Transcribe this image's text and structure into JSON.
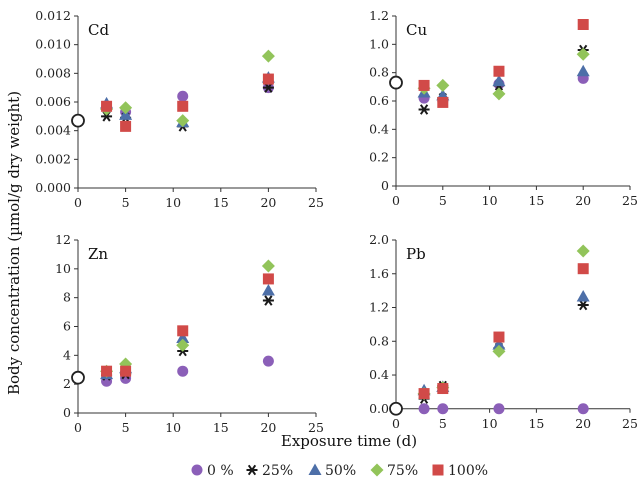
{
  "figure": {
    "ylabel": "Body concentration (µmol/g dry weight)",
    "xlabel": "Exposure time (d)"
  },
  "legend": {
    "items": [
      {
        "label": "0 %",
        "marker": "circle",
        "color": "#8b5fb8"
      },
      {
        "label": "25%",
        "marker": "star",
        "color": "#1a1a1a"
      },
      {
        "label": "50%",
        "marker": "triangle",
        "color": "#4d6fa8"
      },
      {
        "label": "75%",
        "marker": "diamond",
        "color": "#92c45a"
      },
      {
        "label": "100%",
        "marker": "square",
        "color": "#d14a48"
      }
    ]
  },
  "chart_data": [
    {
      "type": "scatter",
      "title": "Cd",
      "x_ticks": [
        0,
        5,
        10,
        15,
        20,
        25
      ],
      "xlim": [
        0,
        25
      ],
      "y_ticks": [
        "0.000",
        "0.002",
        "0.004",
        "0.006",
        "0.008",
        "0.010",
        "0.012"
      ],
      "ylim": [
        0,
        0.012
      ],
      "control": {
        "x": 0,
        "y": 0.0047
      },
      "series": [
        {
          "name": "0 %",
          "x": [
            3,
            5,
            11,
            20
          ],
          "y": [
            0.0057,
            0.0053,
            0.0064,
            0.007
          ]
        },
        {
          "name": "25%",
          "x": [
            3,
            5,
            11,
            20
          ],
          "y": [
            0.005,
            0.0049,
            0.0043,
            0.007
          ]
        },
        {
          "name": "50%",
          "x": [
            3,
            5,
            11,
            20
          ],
          "y": [
            0.0059,
            0.0051,
            0.0046,
            0.0077
          ]
        },
        {
          "name": "75%",
          "x": [
            3,
            5,
            11,
            20
          ],
          "y": [
            0.0055,
            0.0056,
            0.0047,
            0.0092
          ]
        },
        {
          "name": "100%",
          "x": [
            3,
            5,
            11,
            20
          ],
          "y": [
            0.0057,
            0.0043,
            0.0057,
            0.0076
          ]
        }
      ]
    },
    {
      "type": "scatter",
      "title": "Cu",
      "x_ticks": [
        0,
        5,
        10,
        15,
        20,
        25
      ],
      "xlim": [
        0,
        25
      ],
      "y_ticks": [
        "0",
        "0.2",
        "0.4",
        "0.6",
        "0.8",
        "1.0",
        "1.2"
      ],
      "ylim": [
        0,
        1.2
      ],
      "control": {
        "x": 0,
        "y": 0.73
      },
      "series": [
        {
          "name": "0 %",
          "x": [
            3,
            5,
            11,
            20
          ],
          "y": [
            0.62,
            0.6,
            0.72,
            0.76
          ]
        },
        {
          "name": "25%",
          "x": [
            3,
            5,
            11,
            20
          ],
          "y": [
            0.54,
            0.62,
            0.71,
            0.96
          ]
        },
        {
          "name": "50%",
          "x": [
            3,
            5,
            11,
            20
          ],
          "y": [
            0.66,
            0.64,
            0.74,
            0.81
          ]
        },
        {
          "name": "75%",
          "x": [
            3,
            5,
            11,
            20
          ],
          "y": [
            0.69,
            0.71,
            0.65,
            0.93
          ]
        },
        {
          "name": "100%",
          "x": [
            3,
            5,
            11,
            20
          ],
          "y": [
            0.71,
            0.59,
            0.81,
            1.14
          ]
        }
      ]
    },
    {
      "type": "scatter",
      "title": "Zn",
      "x_ticks": [
        0,
        5,
        10,
        15,
        20,
        25
      ],
      "xlim": [
        0,
        25
      ],
      "y_ticks": [
        "0",
        "2",
        "4",
        "6",
        "8",
        "10",
        "12"
      ],
      "ylim": [
        0,
        12
      ],
      "control": {
        "x": 0,
        "y": 2.45
      },
      "series": [
        {
          "name": "0 %",
          "x": [
            3,
            5,
            11,
            20
          ],
          "y": [
            2.2,
            2.4,
            2.9,
            3.6
          ]
        },
        {
          "name": "25%",
          "x": [
            3,
            5,
            11,
            20
          ],
          "y": [
            2.6,
            2.7,
            4.3,
            7.8
          ]
        },
        {
          "name": "50%",
          "x": [
            3,
            5,
            11,
            20
          ],
          "y": [
            2.7,
            3.1,
            5.2,
            8.5
          ]
        },
        {
          "name": "75%",
          "x": [
            3,
            5,
            11,
            20
          ],
          "y": [
            2.9,
            3.4,
            4.7,
            10.2
          ]
        },
        {
          "name": "100%",
          "x": [
            3,
            5,
            11,
            20
          ],
          "y": [
            2.9,
            2.9,
            5.7,
            9.3
          ]
        }
      ]
    },
    {
      "type": "scatter",
      "title": "Pb",
      "x_ticks": [
        0,
        5,
        10,
        15,
        20,
        25
      ],
      "xlim": [
        0,
        25
      ],
      "y_ticks": [
        "0.0",
        "0.4",
        "0.8",
        "1.2",
        "1.6",
        "2.0"
      ],
      "ylim": [
        -0.05,
        2.0
      ],
      "control": {
        "x": 0,
        "y": 0.0
      },
      "series": [
        {
          "name": "0 %",
          "x": [
            3,
            5,
            11,
            20
          ],
          "y": [
            0.0,
            0.0,
            0.0,
            0.0
          ]
        },
        {
          "name": "25%",
          "x": [
            3,
            5,
            11,
            20
          ],
          "y": [
            0.12,
            0.27,
            0.72,
            1.23
          ]
        },
        {
          "name": "50%",
          "x": [
            3,
            5,
            11,
            20
          ],
          "y": [
            0.22,
            0.26,
            0.76,
            1.33
          ]
        },
        {
          "name": "75%",
          "x": [
            3,
            5,
            11,
            20
          ],
          "y": [
            0.18,
            0.25,
            0.68,
            1.87
          ]
        },
        {
          "name": "100%",
          "x": [
            3,
            5,
            11,
            20
          ],
          "y": [
            0.18,
            0.24,
            0.85,
            1.66
          ]
        }
      ]
    }
  ]
}
